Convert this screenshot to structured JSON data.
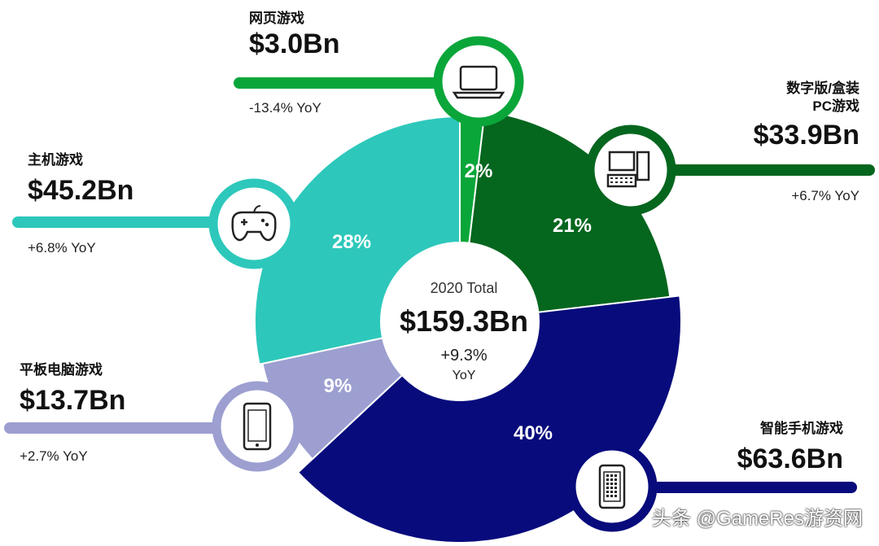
{
  "chart_data": {
    "type": "pie",
    "variant": "donut",
    "categories": [
      "网页游戏",
      "数字版/盒装PC游戏",
      "智能手机游戏",
      "平板电脑游戏",
      "主机游戏"
    ],
    "values": [
      3.0,
      33.9,
      63.6,
      13.7,
      45.2
    ],
    "value_labels": [
      "$3.0Bn",
      "$33.9Bn",
      "$63.6Bn",
      "$13.7Bn",
      "$45.2Bn"
    ],
    "percent_labels": [
      "2%",
      "21%",
      "40%",
      "9%",
      "28%"
    ],
    "yoy": [
      "-13.4% YoY",
      "+6.7% YoY",
      "",
      "+2.7% YoY",
      "+6.8% YoY"
    ],
    "colors": [
      "#0aa63a",
      "#05661e",
      "#070b7c",
      "#9c9fd0",
      "#2dc8bb"
    ],
    "center": {
      "title": "2020 Total",
      "value": "$159.3Bn",
      "yoy": "+9.3%",
      "yoy_suffix": "YoY"
    },
    "icons": [
      "laptop-icon",
      "desktop-pc-icon",
      "smartphone-icon",
      "tablet-icon",
      "gamepad-icon"
    ]
  },
  "watermark": "头条 @GameRes游资网"
}
